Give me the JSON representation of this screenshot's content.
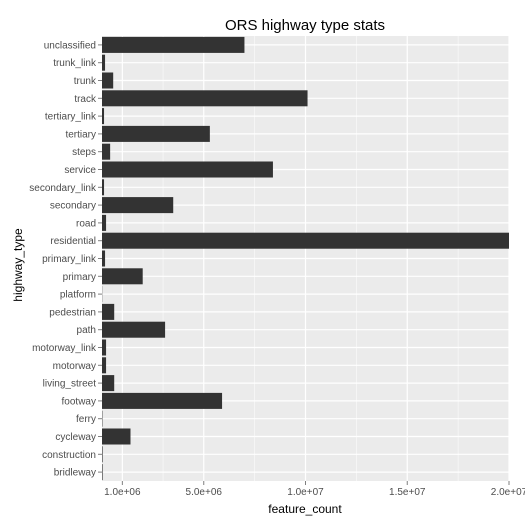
{
  "chart_data": {
    "type": "bar",
    "orientation": "horizontal",
    "title": "ORS highway type stats",
    "xlabel": "feature_count",
    "ylabel": "highway_type",
    "xlim": [
      0,
      20000000
    ],
    "x_ticks": [
      {
        "value": 1000000,
        "label": "1.0e+06"
      },
      {
        "value": 5000000,
        "label": "5.0e+06"
      },
      {
        "value": 10000000,
        "label": "1.0e+07"
      },
      {
        "value": 15000000,
        "label": "1.5e+07"
      },
      {
        "value": 20000000,
        "label": "2.0e+07"
      }
    ],
    "grid": true,
    "categories": [
      "unclassified",
      "trunk_link",
      "trunk",
      "track",
      "tertiary_link",
      "tertiary",
      "steps",
      "service",
      "secondary_link",
      "secondary",
      "road",
      "residential",
      "primary_link",
      "primary",
      "platform",
      "pedestrian",
      "path",
      "motorway_link",
      "motorway",
      "living_street",
      "footway",
      "ferry",
      "cycleway",
      "construction",
      "bridleway"
    ],
    "values": [
      7000000,
      150000,
      550000,
      10100000,
      100000,
      5300000,
      400000,
      8400000,
      100000,
      3500000,
      200000,
      20000000,
      150000,
      2000000,
      10000,
      600000,
      3100000,
      200000,
      200000,
      600000,
      5900000,
      20000,
      1400000,
      30000,
      30000
    ],
    "colors": {
      "bar": "#333333",
      "panel": "#ebebeb",
      "grid": "#ffffff"
    }
  }
}
